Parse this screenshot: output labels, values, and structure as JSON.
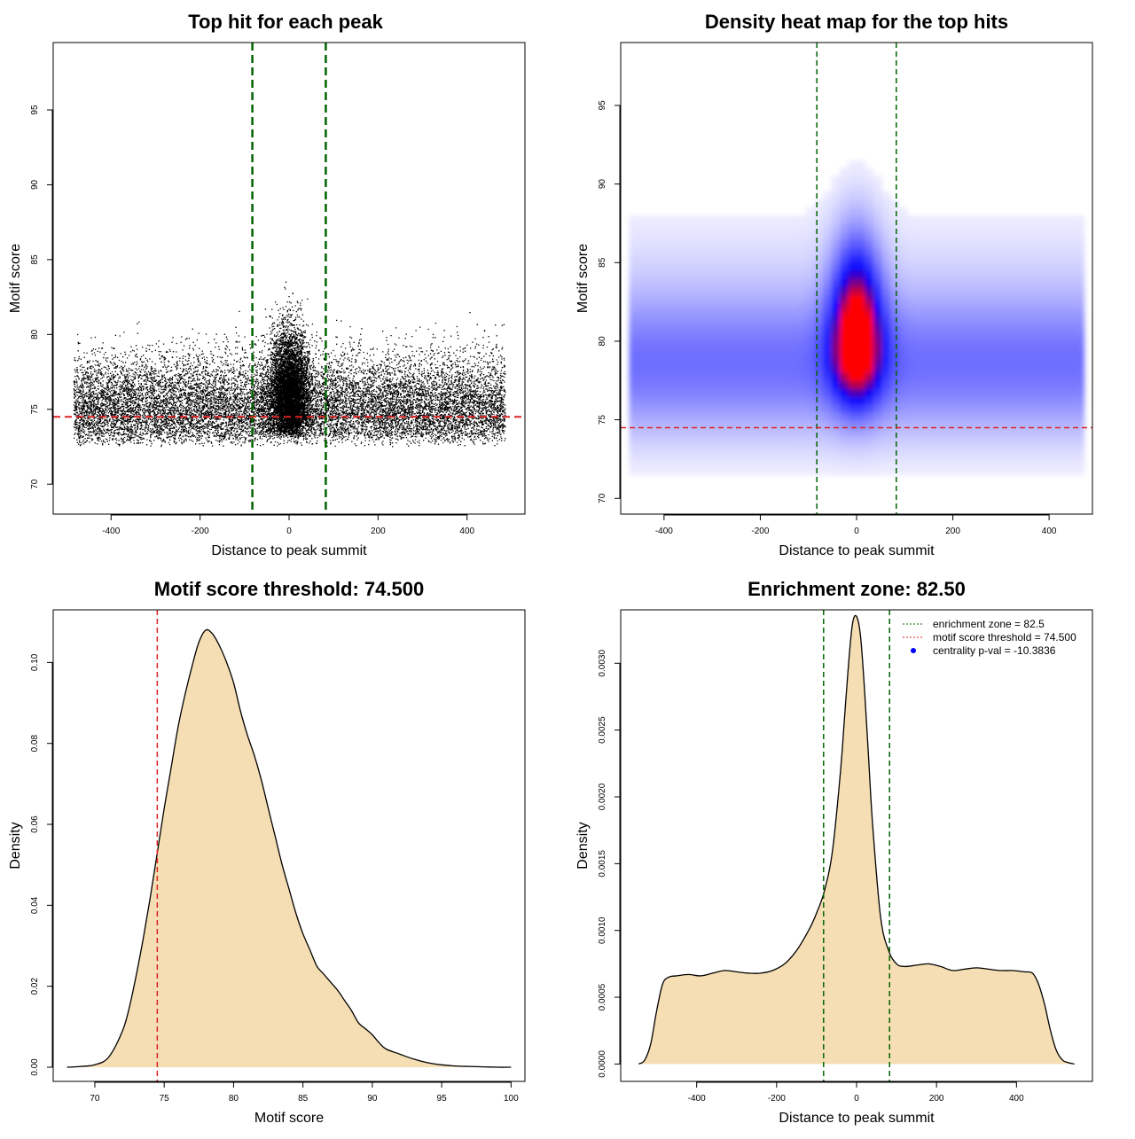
{
  "chart_data": [
    {
      "id": "scatter",
      "type": "scatter",
      "title": "Top hit for each peak",
      "xlabel": "Distance to peak summit",
      "ylabel": "Motif score",
      "xlim": [
        -530,
        530
      ],
      "ylim": [
        68,
        99.5
      ],
      "xticks": [
        -400,
        -200,
        0,
        200,
        400
      ],
      "yticks": [
        70,
        75,
        80,
        85,
        90,
        95
      ],
      "vlines": [
        -82.5,
        82.5
      ],
      "hline": 74.5,
      "n_points": 20000,
      "colors": {
        "points": "#000000",
        "vlines": "#006400",
        "hline": "#dd2222"
      }
    },
    {
      "id": "heatmap",
      "type": "heatmap",
      "title": "Density heat map for the top hits",
      "xlabel": "Distance to peak summit",
      "ylabel": "Motif score",
      "xlim": [
        -490,
        490
      ],
      "ylim": [
        69,
        99
      ],
      "xticks": [
        -400,
        -200,
        0,
        200,
        400
      ],
      "yticks": [
        70,
        75,
        80,
        85,
        90,
        95
      ],
      "vlines": [
        -82.5,
        82.5
      ],
      "hline": 74.5,
      "colors": {
        "low": "#ffffff",
        "mid": "#0000ff",
        "high": "#ff0000",
        "vlines": "#006400",
        "hline": "#dd2222"
      }
    },
    {
      "id": "score-density",
      "type": "area",
      "title": "Motif score threshold: 74.500",
      "xlabel": "Motif score",
      "ylabel": "Density",
      "xlim": [
        67,
        101
      ],
      "ylim": [
        -0.0035,
        0.113
      ],
      "xticks": [
        70,
        75,
        80,
        85,
        90,
        95,
        100
      ],
      "yticks": [
        0.0,
        0.02,
        0.04,
        0.06,
        0.08,
        0.1
      ],
      "ytick_labels": [
        "0.00",
        "0.02",
        "0.04",
        "0.06",
        "0.08",
        "0.10"
      ],
      "x": [
        68,
        69,
        70,
        71,
        72,
        72.5,
        73,
        73.5,
        74,
        74.5,
        75,
        75.5,
        76,
        76.5,
        77,
        77.5,
        78,
        78.5,
        79,
        79.5,
        80,
        80.5,
        81,
        81.5,
        82,
        82.5,
        83,
        83.5,
        84,
        84.5,
        85,
        85.5,
        86,
        86.5,
        87,
        87.5,
        88,
        88.5,
        89,
        89.5,
        90,
        90.5,
        91,
        92,
        93,
        94,
        95,
        96,
        97,
        98,
        99,
        100
      ],
      "y": [
        0.0,
        0.0002,
        0.0006,
        0.0025,
        0.009,
        0.015,
        0.023,
        0.032,
        0.042,
        0.053,
        0.064,
        0.074,
        0.084,
        0.092,
        0.099,
        0.105,
        0.108,
        0.107,
        0.104,
        0.1,
        0.095,
        0.088,
        0.082,
        0.077,
        0.071,
        0.064,
        0.057,
        0.05,
        0.044,
        0.038,
        0.033,
        0.029,
        0.025,
        0.023,
        0.021,
        0.019,
        0.0165,
        0.014,
        0.011,
        0.0095,
        0.008,
        0.006,
        0.0045,
        0.0032,
        0.002,
        0.0011,
        0.0006,
        0.0003,
        0.0002,
        0.0001,
        0.0,
        0.0
      ],
      "vline": 74.5,
      "colors": {
        "fill": "#f5deb3",
        "line": "#000000",
        "vline": "#dd2222"
      }
    },
    {
      "id": "distance-density",
      "type": "area",
      "title": "Enrichment zone: 82.50",
      "xlabel": "Distance to peak summit",
      "ylabel": "Density",
      "xlim": [
        -590,
        590
      ],
      "ylim": [
        -0.00013,
        0.0034
      ],
      "xticks": [
        -400,
        -200,
        0,
        200,
        400
      ],
      "yticks": [
        0,
        0.0005,
        0.001,
        0.0015,
        0.002,
        0.0025,
        0.003
      ],
      "ytick_labels": [
        "0.0000",
        "0.0005",
        "0.0010",
        "0.0015",
        "0.0020",
        "0.0025",
        "0.0030"
      ],
      "x": [
        -545,
        -530,
        -515,
        -500,
        -485,
        -470,
        -450,
        -420,
        -390,
        -360,
        -330,
        -300,
        -270,
        -240,
        -210,
        -180,
        -150,
        -120,
        -100,
        -80,
        -60,
        -40,
        -30,
        -20,
        -10,
        0,
        10,
        20,
        30,
        40,
        60,
        80,
        100,
        120,
        150,
        180,
        210,
        240,
        270,
        300,
        330,
        360,
        390,
        420,
        440,
        455,
        470,
        485,
        500,
        515,
        530,
        545
      ],
      "y": [
        0.0,
        3e-05,
        0.00015,
        0.0004,
        0.0006,
        0.00065,
        0.00066,
        0.00067,
        0.00066,
        0.00068,
        0.0007,
        0.00069,
        0.00068,
        0.00068,
        0.0007,
        0.00075,
        0.00085,
        0.001,
        0.00113,
        0.0013,
        0.0016,
        0.0022,
        0.0026,
        0.003,
        0.0033,
        0.00335,
        0.0032,
        0.0028,
        0.0023,
        0.0018,
        0.0011,
        0.00085,
        0.00075,
        0.00073,
        0.00074,
        0.00075,
        0.00073,
        0.0007,
        0.00071,
        0.00072,
        0.00071,
        0.0007,
        0.0007,
        0.00069,
        0.00068,
        0.0006,
        0.00045,
        0.00025,
        0.0001,
        3e-05,
        1e-05,
        0.0
      ],
      "vlines": [
        -82.5,
        82.5
      ],
      "colors": {
        "fill": "#f5deb3",
        "line": "#000000",
        "vlines": "#006400",
        "points": "#0000ff"
      },
      "legend": {
        "position": "top-right",
        "entries": [
          {
            "label": "enrichment zone = 82.5",
            "style": "dotted-line",
            "color": "#006400"
          },
          {
            "label": "motif score threshold = 74.500",
            "style": "dotted-line",
            "color": "#dd2222"
          },
          {
            "label": "centrality p-val = -10.3836",
            "style": "point",
            "color": "#0000ff"
          }
        ]
      }
    }
  ]
}
